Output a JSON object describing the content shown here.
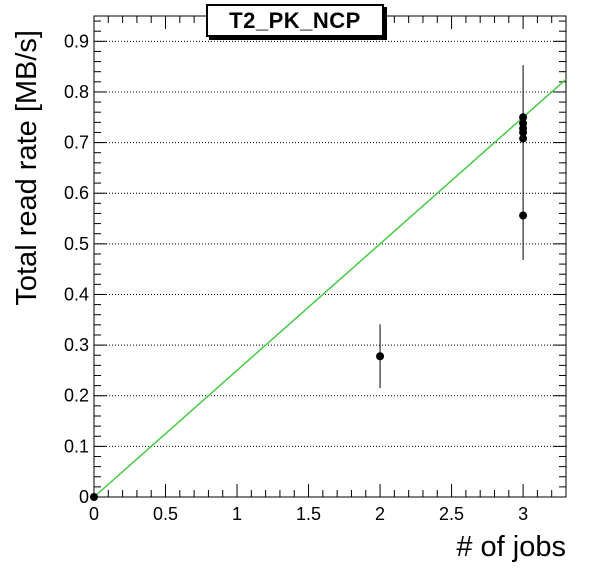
{
  "chart_data": {
    "type": "scatter",
    "title": "T2_PK_NCP",
    "xlabel": "# of jobs",
    "ylabel": "Total read rate [MB/s]",
    "xlim": [
      0,
      3.3
    ],
    "ylim": [
      0,
      0.95
    ],
    "x_ticks": [
      0,
      0.5,
      1,
      1.5,
      2,
      2.5,
      3
    ],
    "x_tick_labels": [
      "0",
      "0.5",
      "1",
      "1.5",
      "2",
      "2.5",
      "3"
    ],
    "y_ticks": [
      0,
      0.1,
      0.2,
      0.3,
      0.4,
      0.5,
      0.6,
      0.7,
      0.8,
      0.9
    ],
    "y_tick_labels": [
      "0",
      "0.1",
      "0.2",
      "0.3",
      "0.4",
      "0.5",
      "0.6",
      "0.7",
      "0.8",
      "0.9"
    ],
    "grid": "horizontal dotted",
    "points": [
      {
        "x": 0,
        "y": 0
      },
      {
        "x": 2,
        "y": 0.278,
        "yerr": 0.063
      },
      {
        "x": 3,
        "y": 0.556
      },
      {
        "x": 3,
        "y": 0.708
      },
      {
        "x": 3,
        "y": 0.72
      },
      {
        "x": 3,
        "y": 0.728
      },
      {
        "x": 3,
        "y": 0.738
      },
      {
        "x": 3,
        "y": 0.75
      }
    ],
    "error_bars": [
      {
        "x": 2,
        "low": 0.215,
        "high": 0.341
      },
      {
        "x": 3,
        "low": 0.468,
        "high": 0.853
      }
    ],
    "fit_line": {
      "slope": 0.25,
      "intercept": 0,
      "color": "#44cc44"
    },
    "marker_color": "#000000"
  }
}
